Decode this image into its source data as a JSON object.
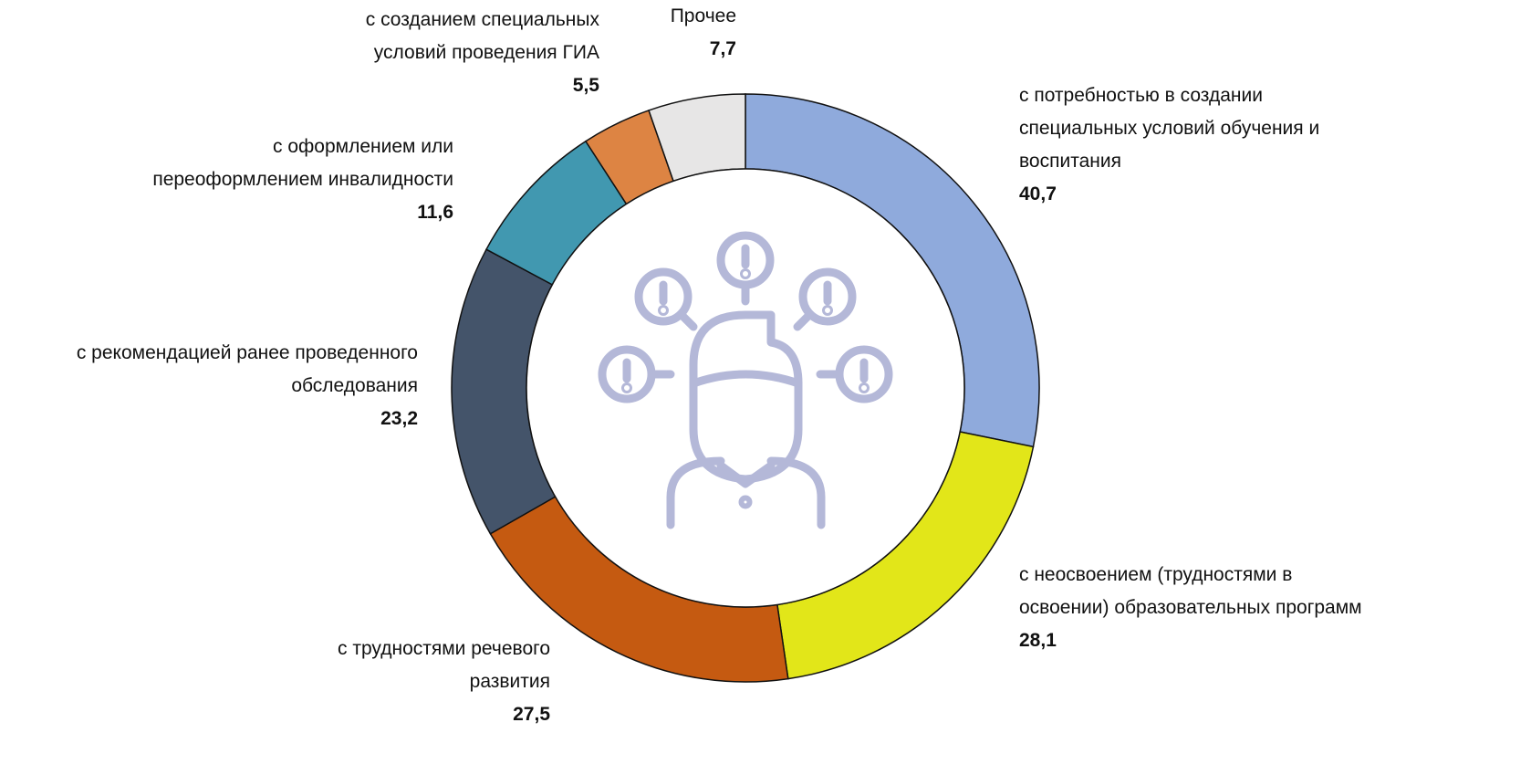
{
  "chart_data": {
    "type": "donut",
    "categories": [
      [
        "с потребностью в создании",
        "специальных условий обучения и",
        "воспитания"
      ],
      [
        "с неосвоением (трудностями в",
        "освоении) образовательных программ"
      ],
      [
        "с трудностями речевого",
        "развития"
      ],
      [
        "с рекомендацией ранее проведенного",
        "обследования"
      ],
      [
        "с оформлением или",
        "переоформлением инвалидности"
      ],
      [
        "с созданием специальных",
        "условий проведения ГИА"
      ],
      [
        "Прочее"
      ]
    ],
    "values": [
      40.7,
      28.1,
      27.5,
      23.2,
      11.6,
      5.5,
      7.7
    ],
    "value_labels": [
      "40,7",
      "28,1",
      "27,5",
      "23,2",
      "11,6",
      "5,5",
      "7,7"
    ],
    "colors": [
      "#8faadc",
      "#e2e619",
      "#c55a11",
      "#44546a",
      "#4198b0",
      "#dd8443",
      "#e7e6e6"
    ]
  }
}
